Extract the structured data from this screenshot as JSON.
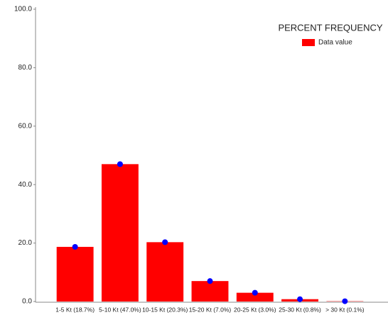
{
  "chart_data": {
    "type": "bar",
    "title": "PERCENT FREQUENCY",
    "legend": "Data value",
    "categories": [
      "1-5 Kt (18.7%)",
      "5-10 Kt (47.0%)",
      "10-15 Kt (20.3%)",
      "15-20 Kt (7.0%)",
      "20-25 Kt (3.0%)",
      "25-30 Kt (0.8%)",
      "> 30 Kt (0.1%)"
    ],
    "values": [
      18.7,
      47.0,
      20.3,
      7.0,
      3.0,
      0.8,
      0.1
    ],
    "color": "#ff0000",
    "marker_color": "#0000ff",
    "ylim": [
      0,
      100
    ],
    "yticks": [
      {
        "value": 0,
        "label": "0.0"
      },
      {
        "value": 20,
        "label": "20.0"
      },
      {
        "value": 40,
        "label": "40.0"
      },
      {
        "value": 60,
        "label": "60.0"
      },
      {
        "value": 80,
        "label": "80.0"
      },
      {
        "value": 100,
        "label": "100.0"
      }
    ],
    "legend_position": "upper right"
  }
}
